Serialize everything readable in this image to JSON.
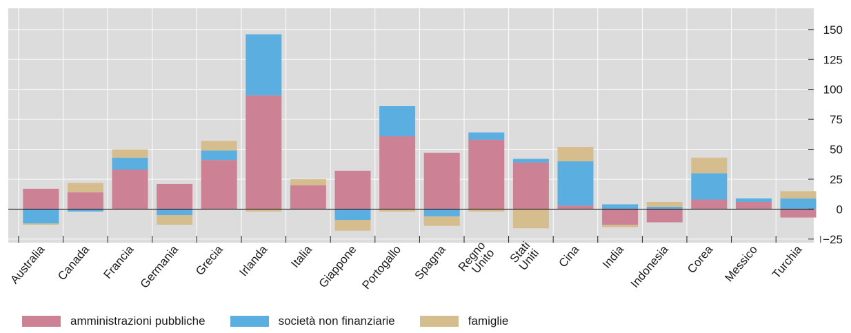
{
  "chart_data": {
    "type": "bar",
    "stacked": true,
    "categories": [
      "Australia",
      "Canada",
      "Francia",
      "Germania",
      "Grecia",
      "Irlanda",
      "Italia",
      "Giappone",
      "Portogallo",
      "Spagna",
      "Regno Unito",
      "Stati Uniti",
      "Cina",
      "India",
      "Indonesia",
      "Corea",
      "Messico",
      "Turchia"
    ],
    "series": [
      {
        "name": "amministrazioni pubbliche",
        "color": "#cc8194",
        "values": [
          17,
          14,
          33,
          21,
          41,
          95,
          20,
          32,
          61,
          47,
          58,
          39,
          3,
          -13,
          -11,
          8,
          6,
          -7
        ]
      },
      {
        "name": "società non finanziarie",
        "color": "#5aafe0",
        "values": [
          -12,
          -2,
          10,
          -5,
          8,
          51,
          0,
          -9,
          25,
          -6,
          6,
          3,
          37,
          4,
          2,
          22,
          3,
          9
        ]
      },
      {
        "name": "famiglie",
        "color": "#d6bd8e",
        "values": [
          -1,
          8,
          7,
          -8,
          8,
          -2,
          5,
          -9,
          -2,
          -8,
          -2,
          -16,
          12,
          -2,
          4,
          13,
          0,
          6
        ]
      }
    ],
    "yticks": [
      -25,
      0,
      25,
      50,
      75,
      100,
      125,
      150
    ],
    "ylim": [
      -28,
      162
    ],
    "grid": true,
    "y_axis_side": "right",
    "legend_position": "bottom-left"
  }
}
